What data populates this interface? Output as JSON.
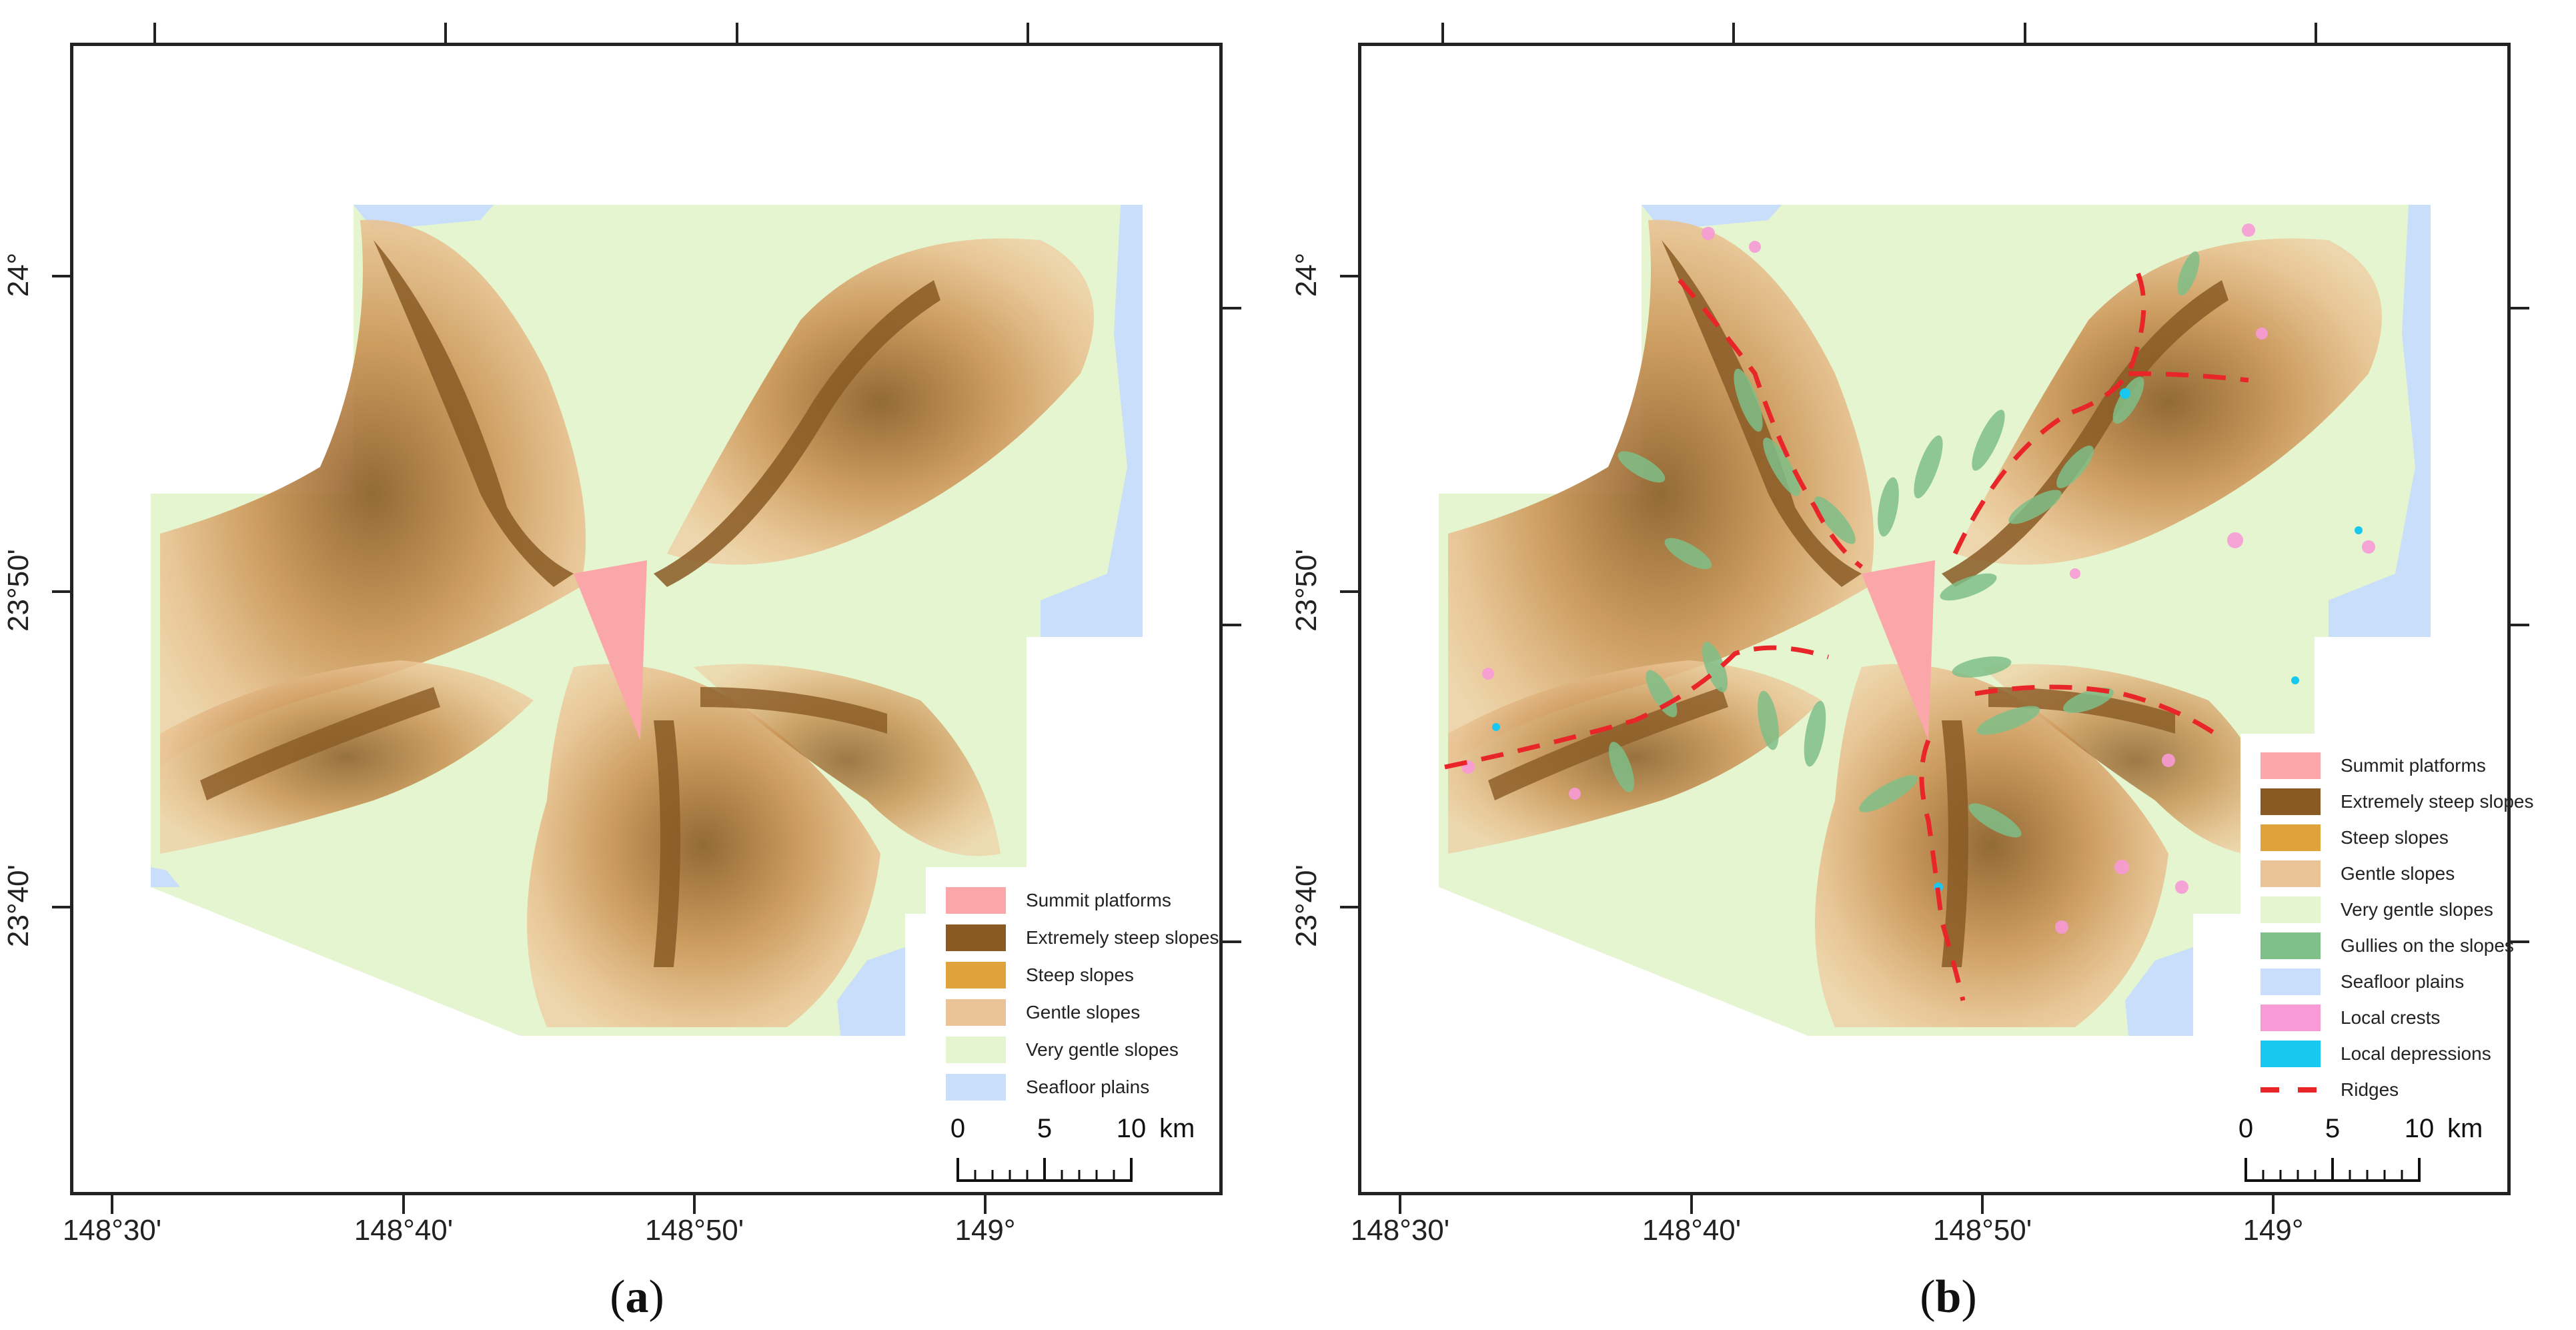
{
  "panels": [
    {
      "id": "a",
      "caption_letter": "a",
      "legend": [
        {
          "label": "Summit platforms",
          "color": "#fba6a8"
        },
        {
          "label": "Extremely steep slopes",
          "color": "#8a5a24"
        },
        {
          "label": "Steep slopes",
          "color": "#e0a23a"
        },
        {
          "label": "Gentle slopes",
          "color": "#eac497"
        },
        {
          "label": "Very gentle slopes",
          "color": "#e4f5cf"
        },
        {
          "label": "Seafloor plains",
          "color": "#c8defb"
        }
      ]
    },
    {
      "id": "b",
      "caption_letter": "b",
      "legend": [
        {
          "label": "Summit platforms",
          "color": "#fba6a8"
        },
        {
          "label": "Extremely steep slopes",
          "color": "#8a5a24"
        },
        {
          "label": "Steep slopes",
          "color": "#e0a23a"
        },
        {
          "label": "Gentle slopes",
          "color": "#eac497"
        },
        {
          "label": "Very gentle slopes",
          "color": "#e4f5cf"
        },
        {
          "label": "Gullies on the slopes",
          "color": "#7fbf88"
        },
        {
          "label": "Seafloor plains",
          "color": "#c8defb"
        },
        {
          "label": "Local crests",
          "color": "#f79ad6"
        },
        {
          "label": "Local depressions",
          "color": "#19c8ee"
        },
        {
          "label": "Ridges",
          "color": "#e8262a",
          "style": "dashed"
        }
      ]
    }
  ],
  "axes": {
    "lat_labels": [
      "24°",
      "23°50'",
      "23°40'"
    ],
    "lon_labels": [
      "148°30'",
      "148°40'",
      "148°50'",
      "149°"
    ]
  },
  "scalebar": {
    "ticks": [
      "0",
      "5",
      "10"
    ],
    "unit": "km"
  }
}
